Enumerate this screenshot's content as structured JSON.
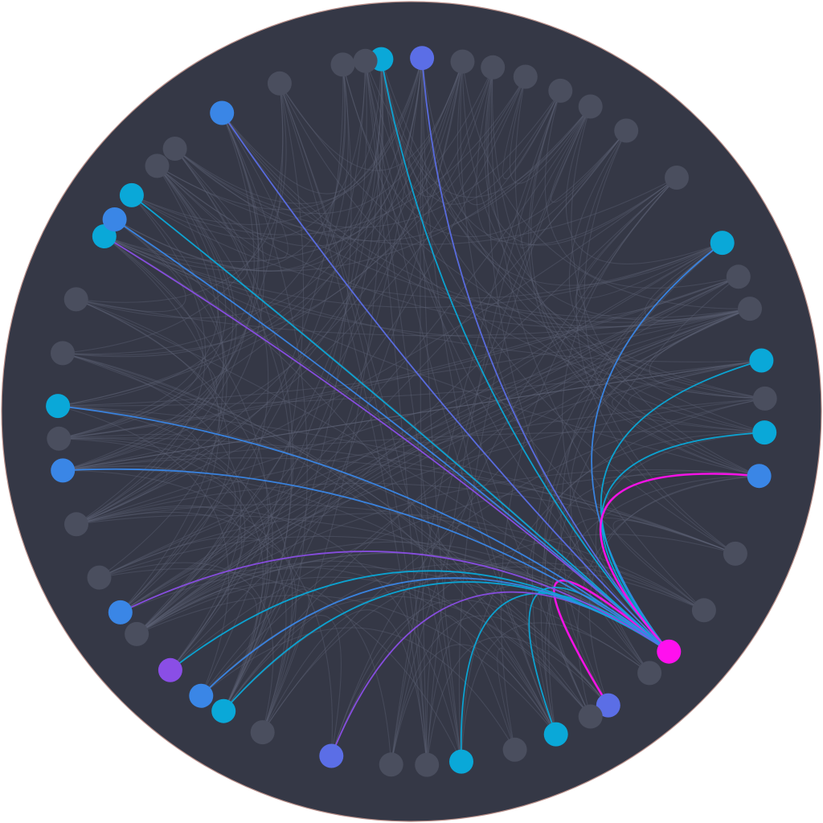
{
  "diagram": {
    "type": "chord-network",
    "background_color": "#353846",
    "rim_color": "#b9908a",
    "idle_node_color": "#4a4e5e",
    "idle_edge_color": "#5d6275",
    "focus_node_color": "#ff10ee",
    "highlight_colors": {
      "cyan": "#0aa8d8",
      "blue": "#3a86e6",
      "indigo": "#5b6ee6",
      "violet": "#8a4ee6",
      "magenta": "#ff10ee"
    },
    "focus_node": 43,
    "nodes": [
      {
        "id": 0,
        "angle": -94.9,
        "color": "cyan"
      },
      {
        "id": 1,
        "angle": -88.3,
        "color": "indigo"
      },
      {
        "id": 2,
        "angle": -81.7,
        "color": "none"
      },
      {
        "id": 3,
        "angle": -76.7,
        "color": "none"
      },
      {
        "id": 4,
        "angle": -71.2,
        "color": "none"
      },
      {
        "id": 5,
        "angle": -65.1,
        "color": "none"
      },
      {
        "id": 6,
        "angle": -59.6,
        "color": "none"
      },
      {
        "id": 7,
        "angle": -52.6,
        "color": "none"
      },
      {
        "id": 8,
        "angle": -41.4,
        "color": "none"
      },
      {
        "id": 9,
        "angle": -28.5,
        "color": "cyan"
      },
      {
        "id": 10,
        "angle": -22.4,
        "color": "none"
      },
      {
        "id": 11,
        "angle": -16.9,
        "color": "none"
      },
      {
        "id": 12,
        "angle": -8.3,
        "color": "cyan"
      },
      {
        "id": 13,
        "angle": -2.1,
        "color": "none"
      },
      {
        "id": 14,
        "angle": 3.4,
        "color": "cyan"
      },
      {
        "id": 15,
        "angle": 10.5,
        "color": "blue"
      },
      {
        "id": 16,
        "angle": 23.7,
        "color": "none"
      },
      {
        "id": 17,
        "angle": 34.2,
        "color": "none"
      },
      {
        "id": 18,
        "angle": 47.7,
        "color": "none"
      },
      {
        "id": 19,
        "angle": 56.2,
        "color": "indigo"
      },
      {
        "id": 20,
        "angle": 59.6,
        "color": "none"
      },
      {
        "id": 21,
        "angle": 65.9,
        "color": "cyan"
      },
      {
        "id": 22,
        "angle": 73.0,
        "color": "none"
      },
      {
        "id": 23,
        "angle": 81.9,
        "color": "cyan"
      },
      {
        "id": 24,
        "angle": 87.5,
        "color": "none"
      },
      {
        "id": 25,
        "angle": 93.3,
        "color": "none"
      },
      {
        "id": 26,
        "angle": 103.1,
        "color": "indigo"
      },
      {
        "id": 27,
        "angle": 114.9,
        "color": "none"
      },
      {
        "id": 28,
        "angle": 122.1,
        "color": "cyan"
      },
      {
        "id": 29,
        "angle": 126.5,
        "color": "blue"
      },
      {
        "id": 30,
        "angle": 133.0,
        "color": "violet"
      },
      {
        "id": 31,
        "angle": 141.0,
        "color": "none"
      },
      {
        "id": 32,
        "angle": 145.4,
        "color": "blue"
      },
      {
        "id": 33,
        "angle": 152.0,
        "color": "none"
      },
      {
        "id": 34,
        "angle": 161.4,
        "color": "none"
      },
      {
        "id": 35,
        "angle": 170.4,
        "color": "blue"
      },
      {
        "id": 36,
        "angle": 175.6,
        "color": "none"
      },
      {
        "id": 37,
        "angle": 180.9,
        "color": "cyan"
      },
      {
        "id": 38,
        "angle": -170.5,
        "color": "none"
      },
      {
        "id": 39,
        "angle": -161.5,
        "color": "none"
      },
      {
        "id": 40,
        "angle": -150.3,
        "color": "cyan"
      },
      {
        "id": 41,
        "angle": -147.1,
        "color": "blue"
      },
      {
        "id": 42,
        "angle": -142.3,
        "color": "cyan"
      },
      {
        "id": 43,
        "angle": 43.0,
        "color": "magenta"
      },
      {
        "id": 44,
        "angle": -136.0,
        "color": "none"
      },
      {
        "id": 45,
        "angle": -132.0,
        "color": "none"
      },
      {
        "id": 46,
        "angle": -122.4,
        "color": "blue"
      },
      {
        "id": 47,
        "angle": -111.9,
        "color": "none"
      },
      {
        "id": 48,
        "angle": -101.2,
        "color": "none"
      },
      {
        "id": 49,
        "angle": -97.5,
        "color": "none"
      }
    ],
    "highlighted_links": [
      {
        "source": 43,
        "target": 0,
        "color": "cyan"
      },
      {
        "source": 43,
        "target": 1,
        "color": "indigo"
      },
      {
        "source": 43,
        "target": 9,
        "color": "blue"
      },
      {
        "source": 43,
        "target": 12,
        "color": "cyan"
      },
      {
        "source": 43,
        "target": 14,
        "color": "cyan"
      },
      {
        "source": 43,
        "target": 15,
        "color": "magenta"
      },
      {
        "source": 43,
        "target": 19,
        "color": "magenta"
      },
      {
        "source": 43,
        "target": 21,
        "color": "cyan"
      },
      {
        "source": 43,
        "target": 23,
        "color": "cyan"
      },
      {
        "source": 43,
        "target": 26,
        "color": "violet"
      },
      {
        "source": 43,
        "target": 28,
        "color": "cyan"
      },
      {
        "source": 43,
        "target": 29,
        "color": "blue"
      },
      {
        "source": 43,
        "target": 30,
        "color": "cyan"
      },
      {
        "source": 43,
        "target": 32,
        "color": "violet"
      },
      {
        "source": 43,
        "target": 35,
        "color": "blue"
      },
      {
        "source": 43,
        "target": 37,
        "color": "blue"
      },
      {
        "source": 43,
        "target": 40,
        "color": "violet"
      },
      {
        "source": 43,
        "target": 41,
        "color": "blue"
      },
      {
        "source": 43,
        "target": 42,
        "color": "cyan"
      },
      {
        "source": 43,
        "target": 46,
        "color": "indigo"
      }
    ]
  }
}
